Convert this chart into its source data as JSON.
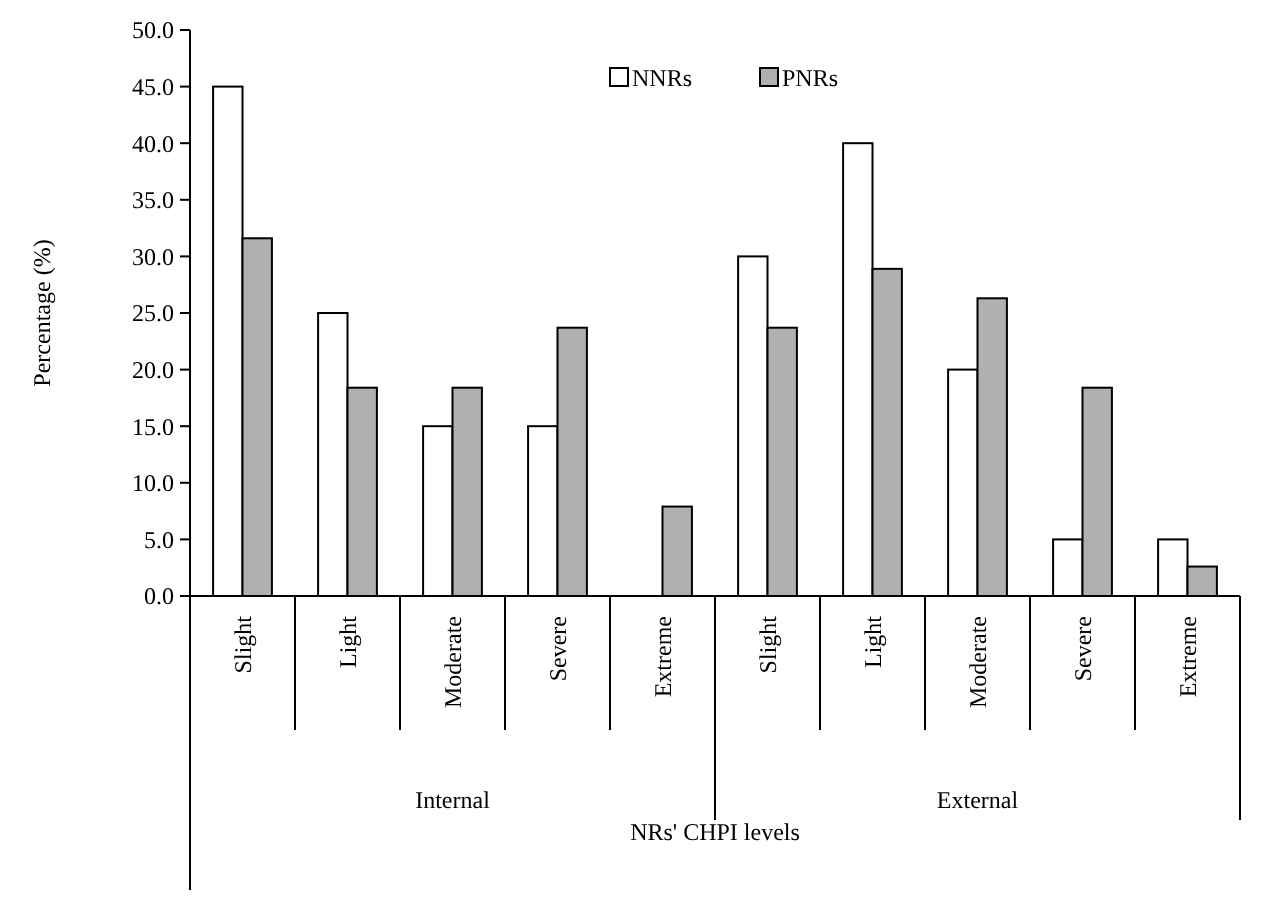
{
  "chart_data": {
    "type": "bar",
    "xlabel": "NRs' CHPI levels",
    "ylabel": "Percentage  (%)",
    "categories": [
      "Slight",
      "Light",
      "Moderate",
      "Severe",
      "Extreme",
      "Slight",
      "Light",
      "Moderate",
      "Severe",
      "Extreme"
    ],
    "series": [
      {
        "name": "NNRs",
        "color": "#ffffff",
        "values": [
          45,
          25,
          15,
          15,
          0,
          30,
          40,
          20,
          5,
          5
        ]
      },
      {
        "name": "PNRs",
        "color": "#b0b0b0",
        "values": [
          31.6,
          18.4,
          18.4,
          23.7,
          7.9,
          23.7,
          28.9,
          26.3,
          18.4,
          2.6
        ]
      }
    ],
    "ylim": [
      0,
      50
    ],
    "yticks": [
      {
        "value": 0,
        "label": "0.0"
      },
      {
        "value": 5,
        "label": "5.0"
      },
      {
        "value": 10,
        "label": "10.0"
      },
      {
        "value": 15,
        "label": "15.0"
      },
      {
        "value": 20,
        "label": "20.0"
      },
      {
        "value": 25,
        "label": "25.0"
      },
      {
        "value": 30,
        "label": "30.0"
      },
      {
        "value": 35,
        "label": "35.0"
      },
      {
        "value": 40,
        "label": "40.0"
      },
      {
        "value": 45,
        "label": "45.0"
      },
      {
        "value": 50,
        "label": "50.0"
      }
    ],
    "annotations": [
      "Internal",
      "External"
    ],
    "grid": false,
    "legend": "top"
  }
}
